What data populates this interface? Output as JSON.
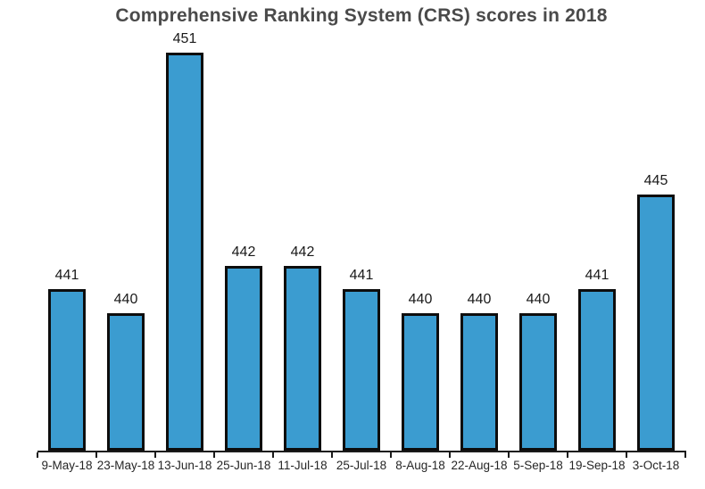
{
  "chart_data": {
    "type": "bar",
    "title": "Comprehensive Ranking System (CRS) scores in 2018",
    "categories": [
      "9-May-18",
      "23-May-18",
      "13-Jun-18",
      "25-Jun-18",
      "11-Jul-18",
      "25-Jul-18",
      "8-Aug-18",
      "22-Aug-18",
      "5-Sep-18",
      "19-Sep-18",
      "3-Oct-18"
    ],
    "values": [
      441,
      440,
      451,
      442,
      442,
      441,
      440,
      440,
      440,
      441,
      445
    ],
    "xlabel": "",
    "ylabel": "",
    "ylim": [
      434,
      451
    ],
    "grid": false,
    "legend_position": "none",
    "data_labels": "above-bars",
    "bar_fill_color": "#3b9cd0",
    "bar_border_color": "#0d0d0d",
    "title_color": "#4a4a4a",
    "axis_color": "#1a1a1a"
  }
}
